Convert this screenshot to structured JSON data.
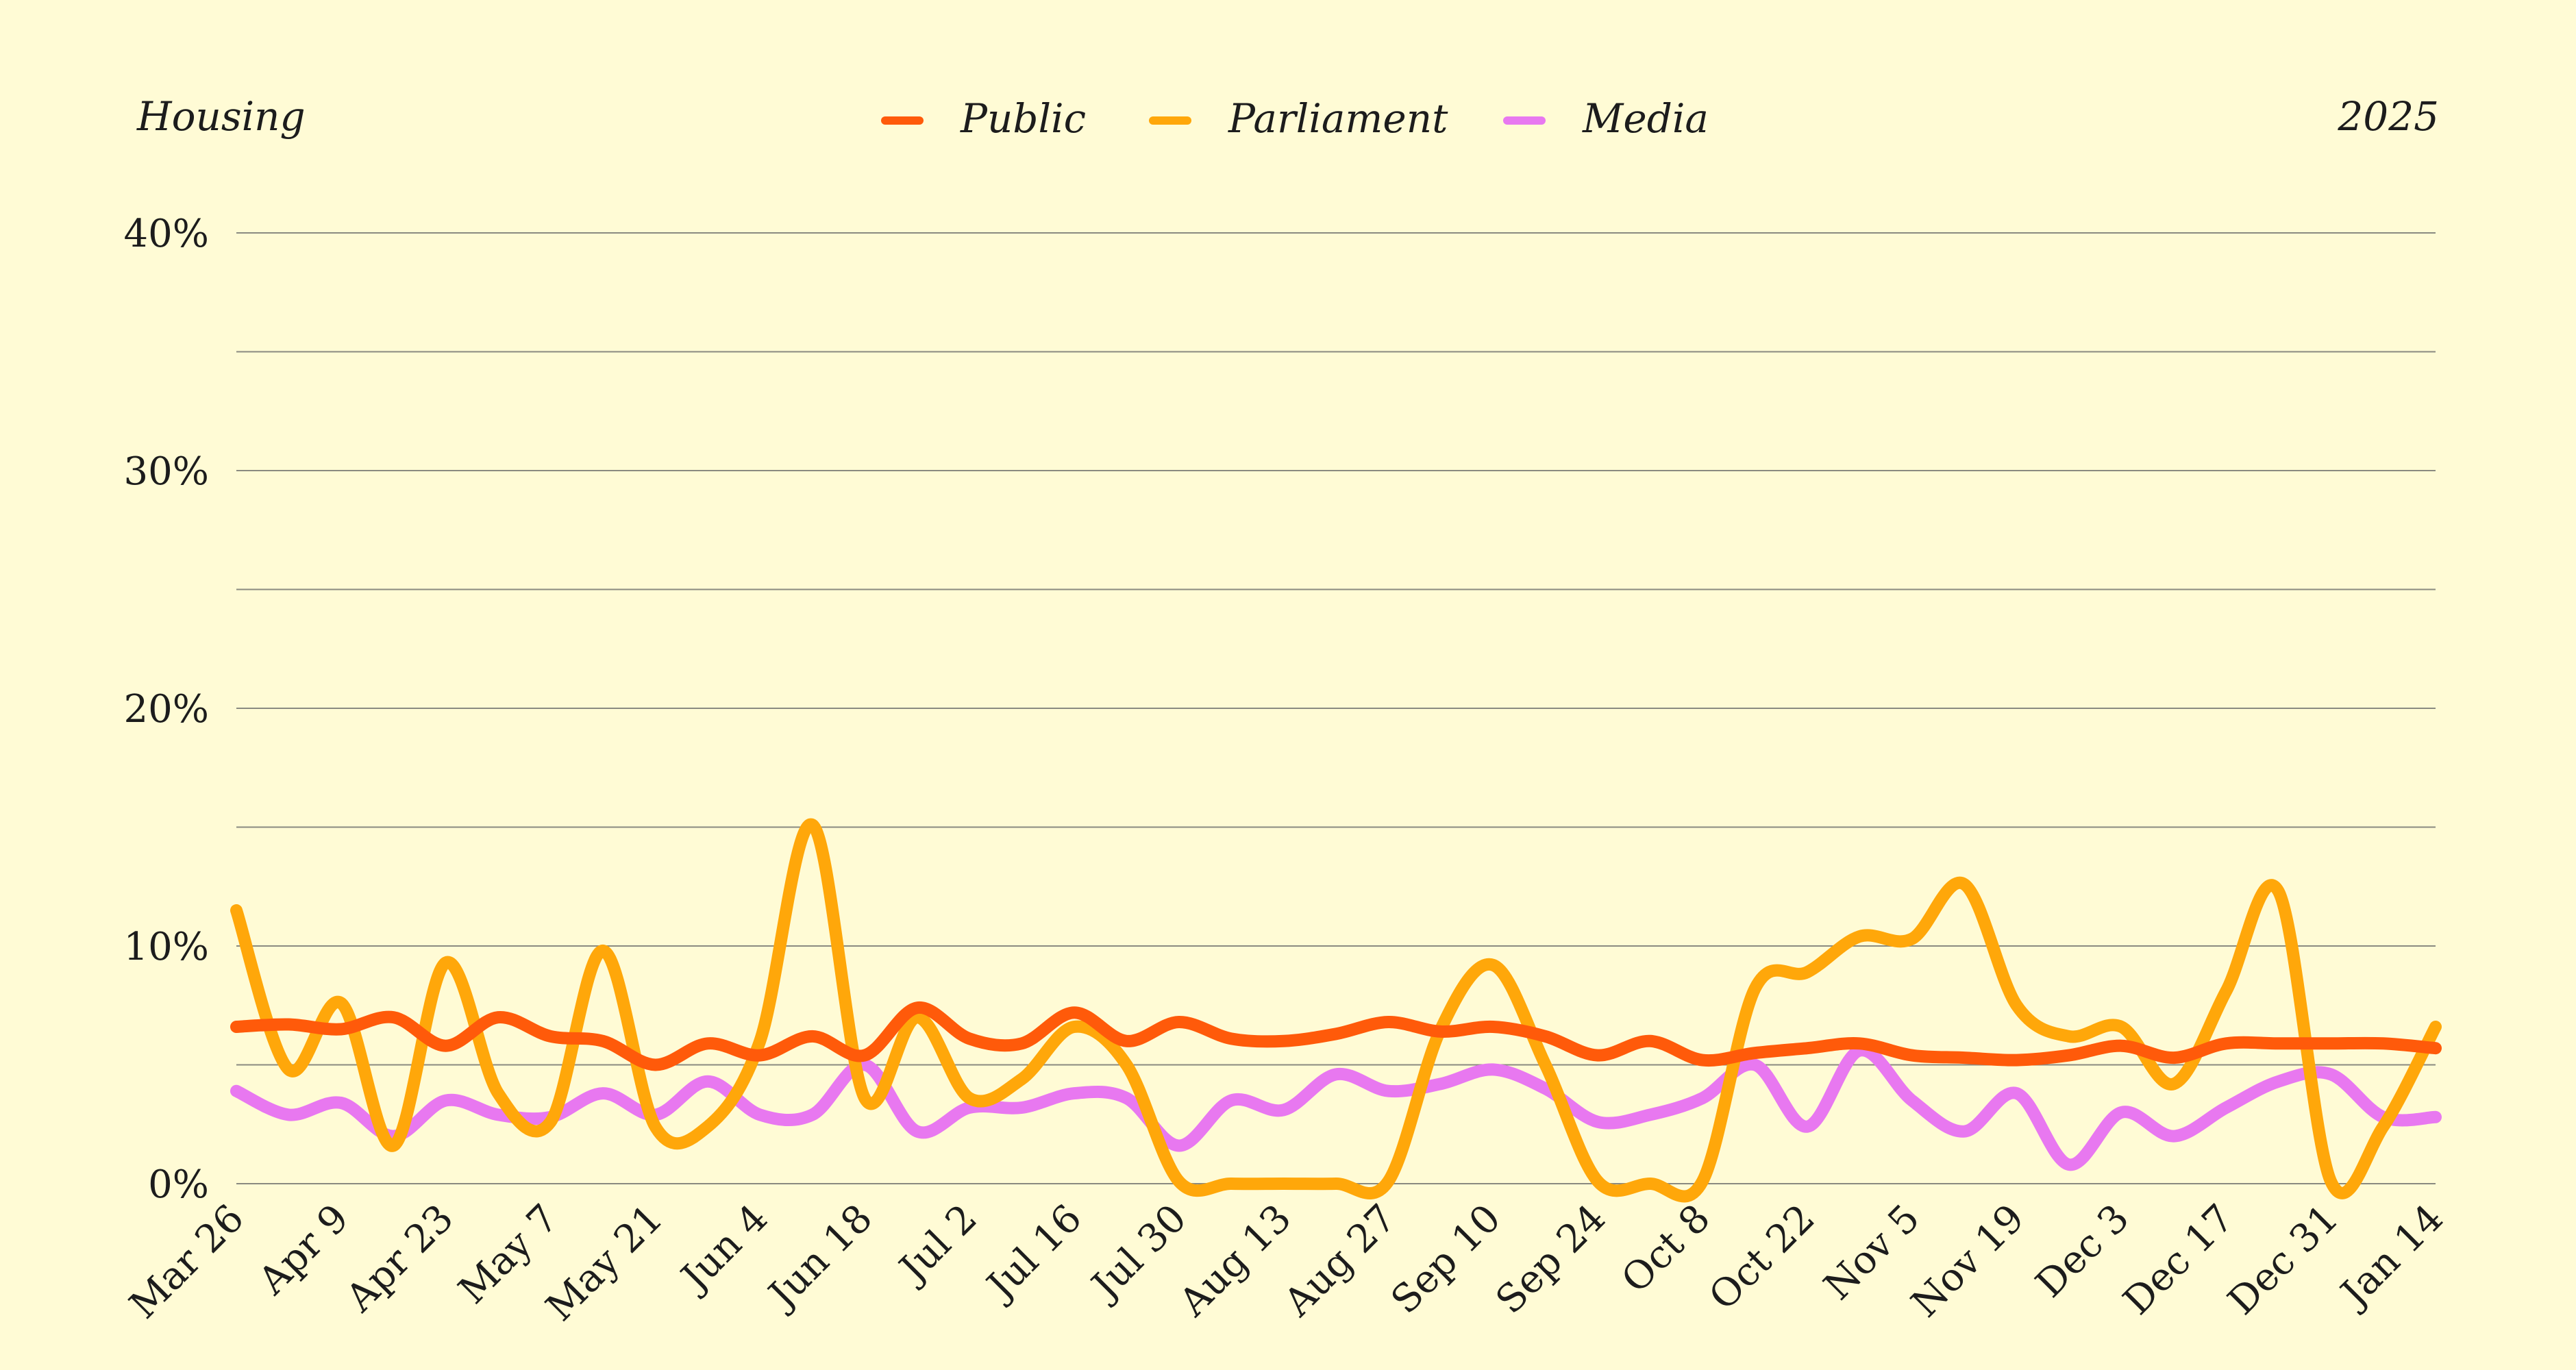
{
  "header": {
    "topic": "Housing",
    "year": "2025"
  },
  "chart_data": {
    "type": "line",
    "ylim": [
      0,
      40
    ],
    "y_ticks": [
      "0%",
      "10%",
      "20%",
      "30%",
      "40%"
    ],
    "y_unit": "%",
    "grid": true,
    "legend_placement": "top-center",
    "x": [
      "Mar 26",
      "Apr 2",
      "Apr 9",
      "Apr 16",
      "Apr 23",
      "Apr 30",
      "May 7",
      "May 14",
      "May 21",
      "May 28",
      "Jun 4",
      "Jun 11",
      "Jun 18",
      "Jun 25",
      "Jul 2",
      "Jul 9",
      "Jul 16",
      "Jul 23",
      "Jul 30",
      "Aug 6",
      "Aug 13",
      "Aug 20",
      "Aug 27",
      "Sep 3",
      "Sep 10",
      "Sep 17",
      "Sep 24",
      "Oct 1",
      "Oct 8",
      "Oct 15",
      "Oct 22",
      "Oct 29",
      "Nov 5",
      "Nov 12",
      "Nov 19",
      "Nov 26",
      "Dec 3",
      "Dec 10",
      "Dec 17",
      "Dec 24",
      "Dec 31",
      "Jan 7",
      "Jan 14"
    ],
    "x_tick_labels": [
      "Mar 26",
      "Apr 9",
      "Apr 23",
      "May 7",
      "May 21",
      "Jun 4",
      "Jun 18",
      "Jul 2",
      "Jul 16",
      "Jul 30",
      "Aug 13",
      "Aug 27",
      "Sep 10",
      "Sep 24",
      "Oct 8",
      "Oct 22",
      "Nov 5",
      "Nov 19",
      "Dec 3",
      "Dec 17",
      "Dec 31",
      "Jan 14"
    ],
    "series": [
      {
        "name": "Public",
        "color": "#ff5a0a",
        "values": [
          6.6,
          6.7,
          6.5,
          7.0,
          5.8,
          7.0,
          6.2,
          6.0,
          5.0,
          5.9,
          5.4,
          6.2,
          5.4,
          7.4,
          6.1,
          5.9,
          7.2,
          6.0,
          6.8,
          6.1,
          6.0,
          6.3,
          6.8,
          6.4,
          6.6,
          6.2,
          5.4,
          6.0,
          5.2,
          5.5,
          5.7,
          5.9,
          5.4,
          5.3,
          5.2,
          5.4,
          5.8,
          5.3,
          5.9,
          5.9,
          5.9,
          5.9,
          5.7
        ]
      },
      {
        "name": "Parliament",
        "color": "#ffa70a",
        "values": [
          11.5,
          4.8,
          7.6,
          1.6,
          9.3,
          3.8,
          2.6,
          9.8,
          2.4,
          2.4,
          6.0,
          15.1,
          3.6,
          7.0,
          3.6,
          4.4,
          6.6,
          5.0,
          0.1,
          0.0,
          0.0,
          0.0,
          0.1,
          6.5,
          9.2,
          5.0,
          0.1,
          0.0,
          0.1,
          8.2,
          8.9,
          10.4,
          10.3,
          12.6,
          7.5,
          6.2,
          6.6,
          4.2,
          8.1,
          12.3,
          0.1,
          2.4,
          6.6
        ]
      },
      {
        "name": "Media",
        "color": "#e878f0",
        "values": [
          3.9,
          2.9,
          3.4,
          2.0,
          3.5,
          2.9,
          2.8,
          3.8,
          2.9,
          4.3,
          2.9,
          2.9,
          5.0,
          2.2,
          3.2,
          3.2,
          3.8,
          3.6,
          1.6,
          3.5,
          3.1,
          4.6,
          3.9,
          4.2,
          4.8,
          4.0,
          2.6,
          2.9,
          3.6,
          5.0,
          2.4,
          5.6,
          3.5,
          2.2,
          3.8,
          0.8,
          3.0,
          2.0,
          3.2,
          4.3,
          4.6,
          2.8,
          2.8
        ]
      }
    ]
  }
}
